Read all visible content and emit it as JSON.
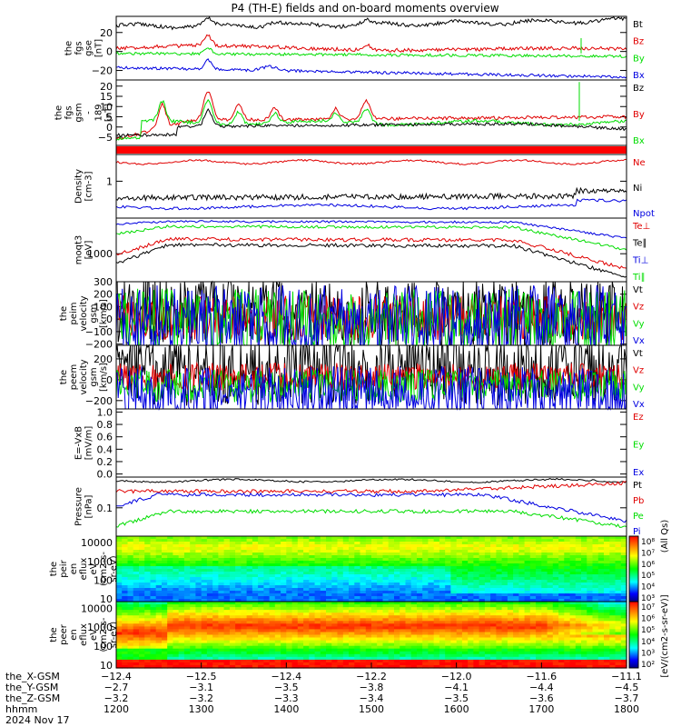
{
  "title": "P4 (TH-E) fields and on-board moments overview",
  "colors": {
    "black": "#000000",
    "red": "#e00000",
    "green": "#00dd00",
    "blue": "#0000e0"
  },
  "panels": [
    {
      "id": "fgs-gse",
      "ylabel_lines": [
        "the",
        "fgs",
        "gse",
        "[nT]"
      ],
      "ymin": -30,
      "ymax": 37,
      "ticks": [
        20,
        0,
        -20
      ],
      "tick_labels": [
        "20",
        "0",
        "−20"
      ],
      "legend": [
        {
          "text": "Bt",
          "color": "black"
        },
        {
          "text": "Bz",
          "color": "red"
        },
        {
          "text": "By",
          "color": "green"
        },
        {
          "text": "Bx",
          "color": "blue"
        }
      ]
    },
    {
      "id": "fgs-gsm",
      "ylabel_lines": [
        "the",
        "fgs",
        "gsm",
        "-",
        "189",
        "[nT]"
      ],
      "ymin": -9,
      "ymax": 23,
      "ticks": [
        20,
        15,
        10,
        5,
        0,
        -5
      ],
      "tick_labels": [
        "20",
        "15",
        "10",
        "5",
        "0",
        "−5"
      ],
      "legend": [
        {
          "text": "Bz",
          "color": "black"
        },
        {
          "text": "By",
          "color": "red"
        },
        {
          "text": "Bx",
          "color": "green"
        }
      ]
    },
    {
      "id": "flag",
      "ylabel_lines": [],
      "ticks": [],
      "tick_labels": [],
      "legend": []
    },
    {
      "id": "density",
      "ylabel_lines": [
        "Density",
        "[cm-3]"
      ],
      "ticks": [
        1
      ],
      "tick_labels": [
        "1"
      ],
      "legend": [
        {
          "text": "Ne",
          "color": "red"
        },
        {
          "text": "Ni",
          "color": "black"
        },
        {
          "text": "Npot",
          "color": "blue"
        }
      ]
    },
    {
      "id": "temperature",
      "ylabel_lines": [
        "moqt3",
        "[eV]"
      ],
      "ticks": [
        1000
      ],
      "tick_labels": [
        "1000"
      ],
      "legend": [
        {
          "text": "Te⊥",
          "color": "red"
        },
        {
          "text": "Te∥",
          "color": "black"
        },
        {
          "text": "Ti⊥",
          "color": "blue"
        },
        {
          "text": "Ti∥",
          "color": "green"
        }
      ]
    },
    {
      "id": "ion-velocity",
      "ylabel_lines": [
        "the",
        "peim",
        "velocity",
        "gsm",
        "[km/s]"
      ],
      "ymin": -210,
      "ymax": 300,
      "ticks": [
        300,
        200,
        100,
        0,
        -100,
        -200
      ],
      "tick_labels": [
        "300",
        "200",
        "100",
        "0",
        "−100",
        "−200"
      ],
      "legend": [
        {
          "text": "Vt",
          "color": "black"
        },
        {
          "text": "Vz",
          "color": "red"
        },
        {
          "text": "Vy",
          "color": "green"
        },
        {
          "text": "Vx",
          "color": "blue"
        }
      ]
    },
    {
      "id": "electron-velocity",
      "ylabel_lines": [
        "the",
        "peem",
        "velocity",
        "gsm",
        "[km/s]"
      ],
      "ymin": -280,
      "ymax": 330,
      "ticks": [
        200,
        0,
        -200
      ],
      "tick_labels": [
        "200",
        "0",
        "−200"
      ],
      "legend": [
        {
          "text": "Vt",
          "color": "black"
        },
        {
          "text": "Vz",
          "color": "red"
        },
        {
          "text": "Vy",
          "color": "green"
        },
        {
          "text": "Vx",
          "color": "blue"
        }
      ]
    },
    {
      "id": "efield",
      "ylabel_lines": [
        "E=-VxB",
        "[mV/m]"
      ],
      "ymin": -0.05,
      "ymax": 1.05,
      "ticks": [
        1.0,
        0.8,
        0.6,
        0.4,
        0.2,
        0.0
      ],
      "tick_labels": [
        "1.0",
        "0.8",
        "0.6",
        "0.4",
        "0.2",
        "0.0"
      ],
      "legend": [
        {
          "text": "Ez",
          "color": "red"
        },
        {
          "text": "Ey",
          "color": "green"
        },
        {
          "text": "Ex",
          "color": "blue"
        }
      ]
    },
    {
      "id": "pressure",
      "ylabel_lines": [
        "Pressure",
        "[nPa]"
      ],
      "ticks": [
        0.1
      ],
      "tick_labels": [
        "0.1"
      ],
      "legend": [
        {
          "text": "Pt",
          "color": "black"
        },
        {
          "text": "Pb",
          "color": "red"
        },
        {
          "text": "Pe",
          "color": "green"
        },
        {
          "text": "Pi",
          "color": "blue"
        }
      ]
    },
    {
      "id": "ion-spectrogram",
      "ylabel_lines": [
        "the",
        "peir",
        "en",
        "eflux",
        "eV",
        "(cm2-s-",
        "sr-eV)"
      ],
      "ticks": [
        10000,
        1000,
        100,
        10
      ],
      "tick_labels": [
        "10000",
        "1000",
        "100",
        "10"
      ],
      "legend": []
    },
    {
      "id": "electron-spectrogram",
      "ylabel_lines": [
        "the",
        "peer",
        "en",
        "eflux",
        "eV",
        "(cm2-s-",
        "sr-eV)"
      ],
      "ticks": [
        10000,
        1000,
        100,
        10
      ],
      "tick_labels": [
        "10000",
        "1000",
        "100",
        "10"
      ],
      "legend": []
    }
  ],
  "colorbar": {
    "label": "[eV/(cm2-s-sr-eV)]",
    "label_extra": "(All Qs)",
    "ticks_ion": [
      "10⁸",
      "10⁷",
      "10⁶",
      "10⁵",
      "10⁴",
      "10³"
    ],
    "ticks_ele": [
      "10⁷",
      "10⁶",
      "10⁵",
      "10⁴",
      "10³",
      "10²"
    ]
  },
  "xaxis": {
    "row_labels": [
      "the_X-GSM",
      "the_Y-GSM",
      "the_Z-GSM",
      "hhmm",
      "2024 Nov 17"
    ],
    "x_gsm": [
      "−12.4",
      "−12.5",
      "−12.4",
      "−12.2",
      "−12.0",
      "−11.6",
      "−11.1"
    ],
    "y_gsm": [
      "−2.7",
      "−3.1",
      "−3.5",
      "−3.8",
      "−4.1",
      "−4.4",
      "−4.5"
    ],
    "z_gsm": [
      "−3.2",
      "−3.2",
      "−3.3",
      "−3.4",
      "−3.5",
      "−3.6",
      "−3.7"
    ],
    "hhmm": [
      "1200",
      "1300",
      "1400",
      "1500",
      "1600",
      "1700",
      "1800"
    ]
  },
  "chart_data": {
    "type": "line",
    "x": [
      "1200",
      "1300",
      "1400",
      "1500",
      "1600",
      "1700",
      "1800"
    ],
    "series": [
      {
        "name": "Bt",
        "values": [
          27,
          31,
          29,
          29,
          29,
          31,
          36
        ]
      },
      {
        "name": "Bz",
        "values": [
          2,
          7,
          6,
          5,
          5,
          4,
          4
        ]
      },
      {
        "name": "By",
        "values": [
          -3,
          -2,
          -2,
          -3,
          -4,
          -5,
          -5
        ]
      },
      {
        "name": "Bx",
        "values": [
          -20,
          -14,
          -18,
          -20,
          -22,
          -25,
          -28
        ]
      }
    ],
    "ylim": [
      -30,
      37
    ],
    "title": "P4 (TH-E) fields and on-board moments overview"
  }
}
